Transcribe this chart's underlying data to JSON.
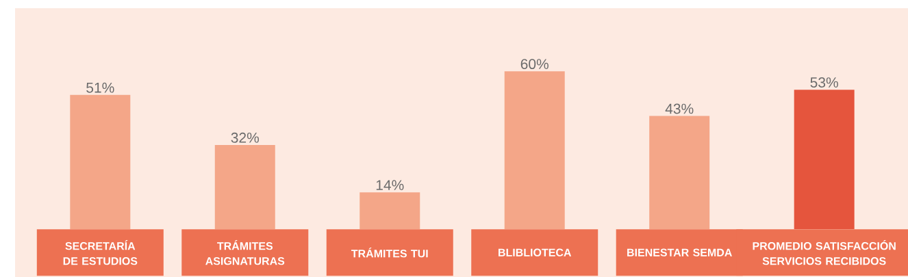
{
  "chart_data": {
    "type": "bar",
    "categories": [
      "SECRETARÍA DE ESTUDIOS",
      "TRÁMITES ASIGNATURAS",
      "TRÁMITES TUI",
      "BLIBLIOTECA",
      "BIENESTAR SEMDA",
      "PROMEDIO SATISFACCIÓN SERVICIOS RECIBIDOS"
    ],
    "values": [
      51,
      32,
      14,
      60,
      43,
      53
    ],
    "value_labels": [
      "51%",
      "32%",
      "14%",
      "60%",
      "43%",
      "53%"
    ],
    "colors": [
      "#f4a688",
      "#f4a688",
      "#f4a688",
      "#f4a688",
      "#f4a688",
      "#e5553d"
    ]
  }
}
